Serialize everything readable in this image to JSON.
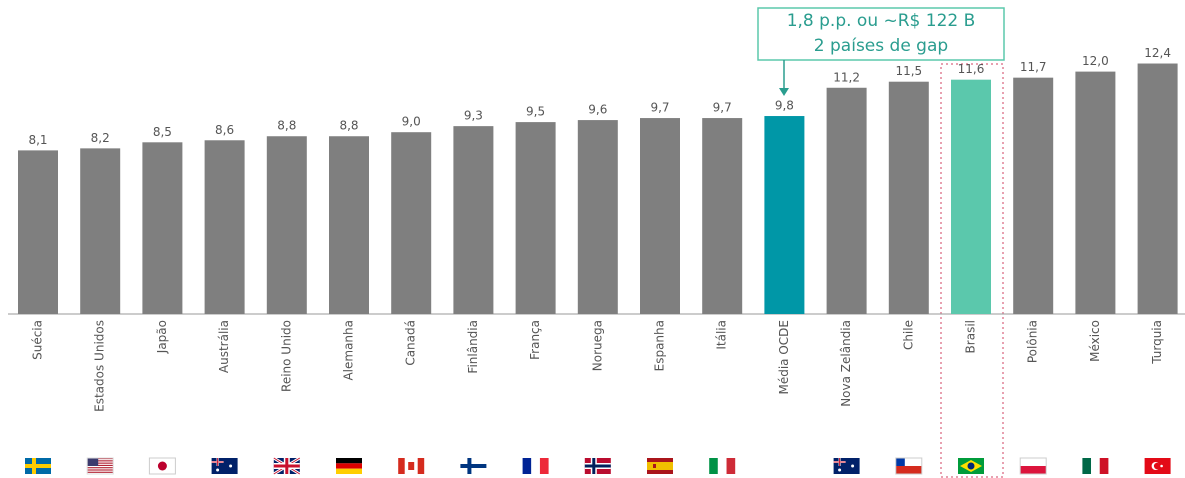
{
  "chart_data": {
    "type": "bar",
    "categories": [
      "Suécia",
      "Estados Unidos",
      "Japão",
      "Austrália",
      "Reino Unido",
      "Alemanha",
      "Canadá",
      "Finlândia",
      "França",
      "Noruega",
      "Espanha",
      "Itália",
      "Média OCDE",
      "Nova Zelândia",
      "Chile",
      "Brasil",
      "Polônia",
      "México",
      "Turquia"
    ],
    "values": [
      8.1,
      8.2,
      8.5,
      8.6,
      8.8,
      8.8,
      9.0,
      9.3,
      9.5,
      9.6,
      9.7,
      9.7,
      9.8,
      11.2,
      11.5,
      11.6,
      11.7,
      12.0,
      12.4
    ],
    "value_labels": [
      "8,1",
      "8,2",
      "8,5",
      "8,6",
      "8,8",
      "8,8",
      "9,0",
      "9,3",
      "9,5",
      "9,6",
      "9,7",
      "9,7",
      "9,8",
      "11,2",
      "11,5",
      "11,6",
      "11,7",
      "12,0",
      "12,4"
    ],
    "colors": [
      "#7f7f7f",
      "#7f7f7f",
      "#7f7f7f",
      "#7f7f7f",
      "#7f7f7f",
      "#7f7f7f",
      "#7f7f7f",
      "#7f7f7f",
      "#7f7f7f",
      "#7f7f7f",
      "#7f7f7f",
      "#7f7f7f",
      "#0097a7",
      "#7f7f7f",
      "#7f7f7f",
      "#5bc8ac",
      "#7f7f7f",
      "#7f7f7f",
      "#7f7f7f"
    ],
    "annotation": [
      "1,8 p.p. ou ~R$ 122 B",
      "2 países de gap"
    ]
  }
}
